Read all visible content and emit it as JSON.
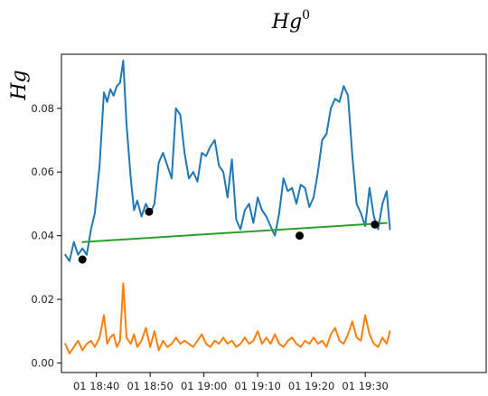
{
  "chart_data": {
    "type": "line",
    "title": "Hg",
    "title_superscript": "0",
    "ylabel": "Hg",
    "ylim": [
      -0.003,
      0.097
    ],
    "y_ticks": [
      {
        "value": 0.0,
        "label": "0.00"
      },
      {
        "value": 0.02,
        "label": "0.02"
      },
      {
        "value": 0.04,
        "label": "0.04"
      },
      {
        "value": 0.06,
        "label": "0.06"
      },
      {
        "value": 0.08,
        "label": "0.08"
      }
    ],
    "x_axis": "time",
    "xlim_minutes": [
      -6.5,
      72.5
    ],
    "x_ticks": [
      {
        "minutes": 0,
        "label": "01 18:40"
      },
      {
        "minutes": 10,
        "label": "01 18:50"
      },
      {
        "minutes": 20,
        "label": "01 19:00"
      },
      {
        "minutes": 30,
        "label": "01 19:10"
      },
      {
        "minutes": 40,
        "label": "01 19:20"
      },
      {
        "minutes": 50,
        "label": "01 19:30"
      }
    ],
    "series": [
      {
        "key": "blue",
        "color": "#1f77b4",
        "kind": "line",
        "x": [
          -5.8,
          -5.0,
          -4.2,
          -3.4,
          -2.6,
          -1.8,
          -1.0,
          -0.3,
          0.6,
          1.4,
          2.0,
          2.6,
          3.2,
          3.8,
          4.4,
          5.0,
          5.6,
          6.4,
          7.0,
          7.6,
          8.4,
          9.2,
          10.0,
          10.8,
          11.6,
          12.4,
          13.2,
          14.0,
          14.8,
          15.6,
          16.4,
          17.2,
          18.0,
          18.8,
          19.6,
          20.4,
          21.2,
          22.0,
          22.8,
          23.6,
          24.4,
          25.2,
          26.0,
          26.8,
          27.6,
          28.4,
          29.2,
          30.0,
          30.8,
          31.6,
          32.4,
          33.2,
          34.0,
          34.8,
          35.6,
          36.4,
          37.2,
          38.0,
          38.8,
          39.6,
          40.4,
          41.2,
          42.0,
          42.8,
          43.6,
          44.4,
          45.2,
          46.0,
          46.8,
          47.6,
          48.4,
          49.2,
          50.0,
          50.8,
          51.6,
          52.4,
          53.2,
          54.0,
          54.6
        ],
        "y": [
          0.034,
          0.032,
          0.038,
          0.034,
          0.036,
          0.034,
          0.042,
          0.047,
          0.062,
          0.085,
          0.082,
          0.086,
          0.084,
          0.087,
          0.088,
          0.095,
          0.075,
          0.058,
          0.048,
          0.051,
          0.046,
          0.05,
          0.047,
          0.05,
          0.063,
          0.066,
          0.062,
          0.058,
          0.08,
          0.078,
          0.066,
          0.058,
          0.06,
          0.057,
          0.066,
          0.065,
          0.068,
          0.07,
          0.062,
          0.06,
          0.052,
          0.064,
          0.045,
          0.042,
          0.048,
          0.05,
          0.044,
          0.052,
          0.048,
          0.046,
          0.043,
          0.04,
          0.047,
          0.058,
          0.054,
          0.055,
          0.05,
          0.056,
          0.055,
          0.049,
          0.052,
          0.06,
          0.07,
          0.072,
          0.08,
          0.083,
          0.082,
          0.087,
          0.084,
          0.065,
          0.05,
          0.047,
          0.043,
          0.055,
          0.046,
          0.042,
          0.05,
          0.054,
          0.042
        ]
      },
      {
        "key": "orange",
        "color": "#ff7f0e",
        "kind": "line",
        "x": [
          -5.8,
          -5.0,
          -4.2,
          -3.4,
          -2.6,
          -1.8,
          -1.0,
          -0.3,
          0.6,
          1.4,
          2.0,
          2.6,
          3.2,
          3.8,
          4.4,
          5.0,
          5.6,
          6.4,
          7.0,
          7.6,
          8.4,
          9.2,
          10.0,
          10.8,
          11.6,
          12.4,
          13.2,
          14.0,
          14.8,
          15.6,
          16.4,
          17.2,
          18.0,
          18.8,
          19.6,
          20.4,
          21.2,
          22.0,
          22.8,
          23.6,
          24.4,
          25.2,
          26.0,
          26.8,
          27.6,
          28.4,
          29.2,
          30.0,
          30.8,
          31.6,
          32.4,
          33.2,
          34.0,
          34.8,
          35.6,
          36.4,
          37.2,
          38.0,
          38.8,
          39.6,
          40.4,
          41.2,
          42.0,
          42.8,
          43.6,
          44.4,
          45.2,
          46.0,
          46.8,
          47.6,
          48.4,
          49.2,
          50.0,
          50.8,
          51.6,
          52.4,
          53.2,
          54.0,
          54.6
        ],
        "y": [
          0.006,
          0.003,
          0.005,
          0.007,
          0.004,
          0.006,
          0.007,
          0.005,
          0.008,
          0.015,
          0.006,
          0.008,
          0.009,
          0.005,
          0.007,
          0.025,
          0.008,
          0.006,
          0.009,
          0.005,
          0.007,
          0.011,
          0.005,
          0.01,
          0.004,
          0.007,
          0.005,
          0.006,
          0.008,
          0.006,
          0.007,
          0.006,
          0.005,
          0.007,
          0.009,
          0.006,
          0.005,
          0.007,
          0.006,
          0.008,
          0.006,
          0.007,
          0.005,
          0.006,
          0.008,
          0.006,
          0.007,
          0.01,
          0.006,
          0.008,
          0.006,
          0.009,
          0.006,
          0.005,
          0.007,
          0.008,
          0.006,
          0.005,
          0.007,
          0.006,
          0.008,
          0.006,
          0.007,
          0.005,
          0.009,
          0.011,
          0.007,
          0.006,
          0.009,
          0.013,
          0.008,
          0.007,
          0.015,
          0.009,
          0.006,
          0.005,
          0.008,
          0.006,
          0.01
        ]
      },
      {
        "key": "green",
        "color": "#2ca02c",
        "kind": "line",
        "x": [
          -2.6,
          54.0
        ],
        "y": [
          0.038,
          0.044
        ]
      },
      {
        "key": "black-points",
        "color": "#000000",
        "kind": "scatter",
        "x": [
          -2.6,
          9.8,
          37.8,
          51.8
        ],
        "y": [
          0.0325,
          0.0475,
          0.04,
          0.0435
        ]
      }
    ]
  }
}
